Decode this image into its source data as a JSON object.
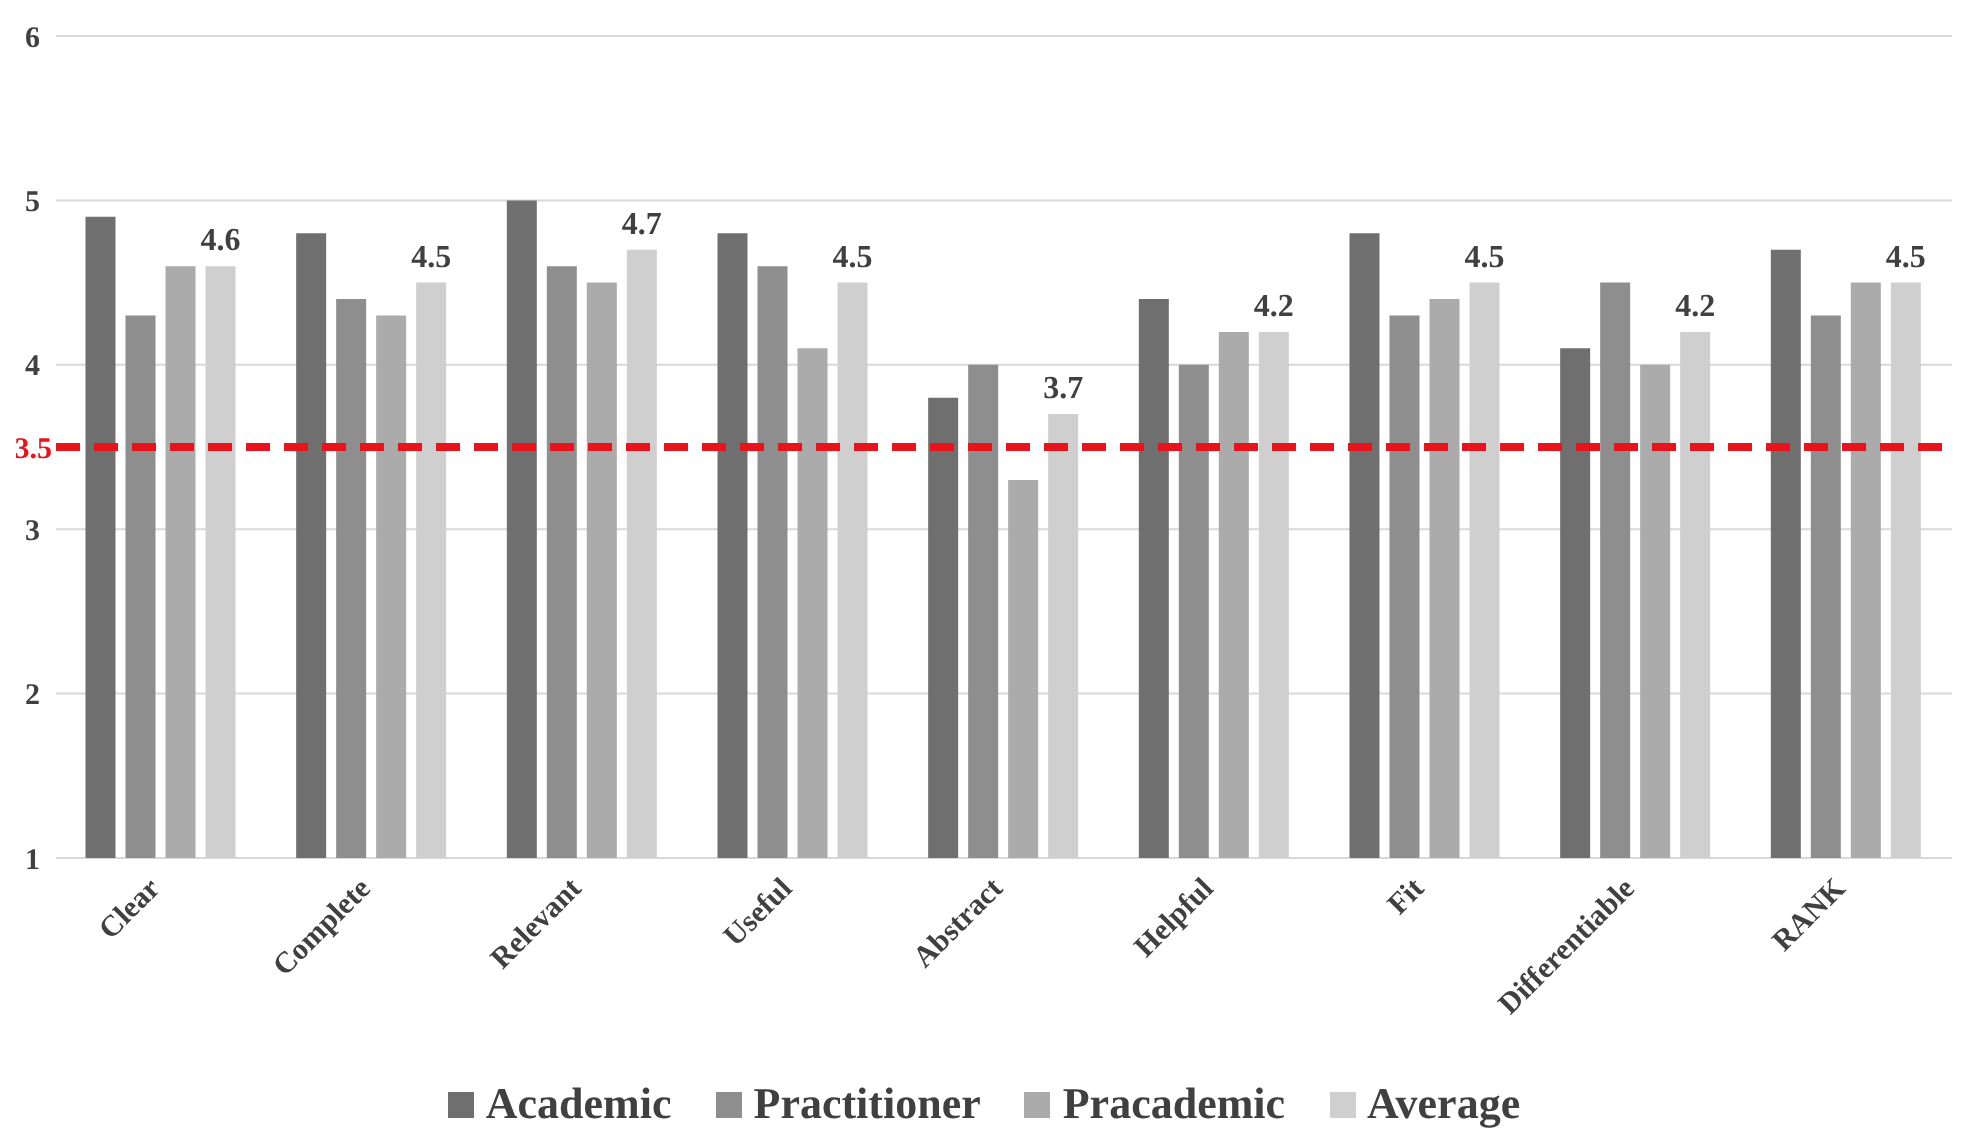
{
  "chart_data": {
    "type": "bar",
    "categories": [
      "Clear",
      "Complete",
      "Relevant",
      "Useful",
      "Abstract",
      "Helpful",
      "Fit",
      "Differentiable",
      "RANK"
    ],
    "series": [
      {
        "name": "Academic",
        "color": "#6f6f6f",
        "values": [
          4.9,
          4.8,
          5.0,
          4.8,
          3.8,
          4.4,
          4.8,
          4.1,
          4.7
        ]
      },
      {
        "name": "Practitioner",
        "color": "#8e8e8e",
        "values": [
          4.3,
          4.4,
          4.6,
          4.6,
          4.0,
          4.0,
          4.3,
          4.5,
          4.3
        ]
      },
      {
        "name": "Pracademic",
        "color": "#ababab",
        "values": [
          4.6,
          4.3,
          4.5,
          4.1,
          3.3,
          4.2,
          4.4,
          4.0,
          4.5
        ]
      },
      {
        "name": "Average",
        "color": "#cfcfcf",
        "values": [
          4.6,
          4.5,
          4.7,
          4.5,
          3.7,
          4.2,
          4.5,
          4.2,
          4.5
        ],
        "value_labels": [
          "4.6",
          "4.5",
          "4.7",
          "4.5",
          "3.7",
          "4.2",
          "4.5",
          "4.2",
          "4.5"
        ]
      }
    ],
    "ylim": [
      1,
      6
    ],
    "yticks": [
      1,
      2,
      3,
      4,
      5,
      6
    ],
    "grid": "y",
    "legend": "bottom",
    "ref_lines": [
      {
        "axis": "y",
        "value": 3.5,
        "label": "3.5",
        "color": "#e8141c",
        "line_style": "dashed"
      }
    ]
  }
}
